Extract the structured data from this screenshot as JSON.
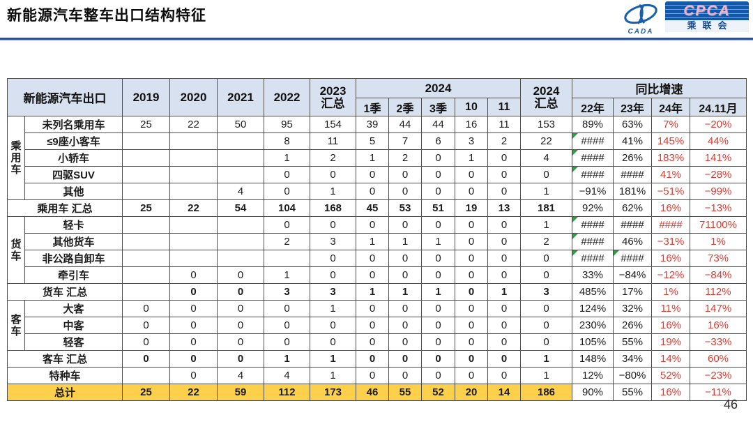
{
  "page": {
    "title": "新能源汽车整车出口结构特征",
    "page_number": "46"
  },
  "logo": {
    "cada_text": "CADA",
    "cpca_text": "CPCA",
    "cpca_sub": "乘联会"
  },
  "table": {
    "header": {
      "col0": "新能源汽车出口",
      "years": [
        "2019",
        "2020",
        "2021",
        "2022"
      ],
      "y2023": "2023\n汇总",
      "y2024_group": "2024",
      "y2024_cols": [
        "1季",
        "2季",
        "3季",
        "10",
        "11"
      ],
      "y2024_total": "2024\n汇总",
      "yoy_group": "同比增速",
      "yoy_cols": [
        "22年",
        "23年",
        "24年",
        "24.11月"
      ]
    },
    "rows": [
      {
        "g": "乘用车",
        "gspan": 5,
        "label": "未列名乘用车",
        "v": [
          "25",
          "22",
          "50",
          "95",
          "154",
          "39",
          "44",
          "44",
          "16",
          "11",
          "153"
        ],
        "yoy": [
          "89%",
          "63%",
          "7%",
          "−20%"
        ],
        "tri": []
      },
      {
        "label": "≤9座小客车",
        "v": [
          "",
          "",
          "",
          "8",
          "11",
          "5",
          "7",
          "6",
          "3",
          "2",
          "22"
        ],
        "yoy": [
          "####",
          "41%",
          "145%",
          "44%"
        ],
        "tri": [
          0
        ]
      },
      {
        "label": "小轿车",
        "v": [
          "",
          "",
          "",
          "1",
          "2",
          "1",
          "2",
          "0",
          "1",
          "0",
          "4"
        ],
        "yoy": [
          "####",
          "26%",
          "183%",
          "141%"
        ],
        "tri": [
          0
        ]
      },
      {
        "label": "四驱SUV",
        "v": [
          "",
          "",
          "",
          "0",
          "0",
          "0",
          "0",
          "0",
          "0",
          "0",
          "0"
        ],
        "yoy": [
          "####",
          "####",
          "41%",
          "−28%"
        ],
        "tri": [
          0
        ]
      },
      {
        "label": "其他",
        "v": [
          "",
          "",
          "4",
          "0",
          "1",
          "0",
          "0",
          "0",
          "0",
          "0",
          "1"
        ],
        "yoy": [
          "−91%",
          "181%",
          "−51%",
          "−99%"
        ],
        "tri": []
      },
      {
        "type": "subtotal",
        "label": "乘用车 汇总",
        "v": [
          "25",
          "22",
          "54",
          "104",
          "168",
          "45",
          "53",
          "51",
          "19",
          "13",
          "181"
        ],
        "yoy": [
          "92%",
          "62%",
          "16%",
          "−13%"
        ],
        "tri": []
      },
      {
        "g": "货车",
        "gspan": 4,
        "label": "轻卡",
        "v": [
          "",
          "",
          "",
          "0",
          "0",
          "0",
          "0",
          "0",
          "0",
          "0",
          "1"
        ],
        "yoy": [
          "####",
          "####",
          "####",
          "71100%"
        ],
        "tri": [
          0
        ]
      },
      {
        "label": "其他货车",
        "v": [
          "",
          "",
          "",
          "2",
          "3",
          "1",
          "1",
          "1",
          "0",
          "0",
          "2"
        ],
        "yoy": [
          "####",
          "46%",
          "−31%",
          "1%"
        ],
        "tri": [
          0
        ]
      },
      {
        "label": "非公路自卸车",
        "v": [
          "",
          "",
          "",
          "",
          "0",
          "0",
          "0",
          "0",
          "0",
          "0",
          "0"
        ],
        "yoy": [
          "####",
          "####",
          "16%",
          "73%"
        ],
        "tri": [
          0,
          1
        ]
      },
      {
        "label": "牵引车",
        "v": [
          "",
          "0",
          "0",
          "1",
          "0",
          "0",
          "0",
          "0",
          "0",
          "0",
          "0"
        ],
        "yoy": [
          "33%",
          "−84%",
          "−12%",
          "−84%"
        ],
        "tri": []
      },
      {
        "type": "subtotal",
        "label": "货车 汇总",
        "v": [
          "",
          "0",
          "0",
          "3",
          "3",
          "1",
          "1",
          "1",
          "0",
          "1",
          "3"
        ],
        "yoy": [
          "485%",
          "17%",
          "1%",
          "112%"
        ],
        "tri": []
      },
      {
        "g": "客车",
        "gspan": 3,
        "label": "大客",
        "v": [
          "0",
          "0",
          "0",
          "0",
          "1",
          "0",
          "0",
          "0",
          "0",
          "0",
          "0"
        ],
        "yoy": [
          "124%",
          "32%",
          "11%",
          "147%"
        ],
        "tri": []
      },
      {
        "label": "中客",
        "v": [
          "0",
          "0",
          "0",
          "0",
          "0",
          "0",
          "0",
          "0",
          "0",
          "0",
          "0"
        ],
        "yoy": [
          "230%",
          "26%",
          "16%",
          "16%"
        ],
        "tri": []
      },
      {
        "label": "轻客",
        "v": [
          "0",
          "0",
          "0",
          "0",
          "0",
          "0",
          "0",
          "0",
          "0",
          "0",
          "0"
        ],
        "yoy": [
          "105%",
          "55%",
          "19%",
          "−33%"
        ],
        "tri": []
      },
      {
        "type": "subtotal",
        "label": "客车 汇总",
        "v": [
          "0",
          "0",
          "0",
          "1",
          "1",
          "0",
          "0",
          "0",
          "0",
          "0",
          "1"
        ],
        "yoy": [
          "148%",
          "34%",
          "14%",
          "60%"
        ],
        "tri": []
      },
      {
        "type": "special",
        "label": "特种车",
        "v": [
          "",
          "0",
          "4",
          "4",
          "1",
          "0",
          "0",
          "0",
          "0",
          "0",
          "1"
        ],
        "yoy": [
          "12%",
          "−80%",
          "52%",
          "−23%"
        ],
        "tri": []
      },
      {
        "type": "total",
        "label": "总计",
        "v": [
          "25",
          "22",
          "59",
          "112",
          "173",
          "46",
          "55",
          "52",
          "20",
          "14",
          "186"
        ],
        "yoy": [
          "90%",
          "55%",
          "16%",
          "−11%"
        ],
        "tri": []
      }
    ]
  }
}
